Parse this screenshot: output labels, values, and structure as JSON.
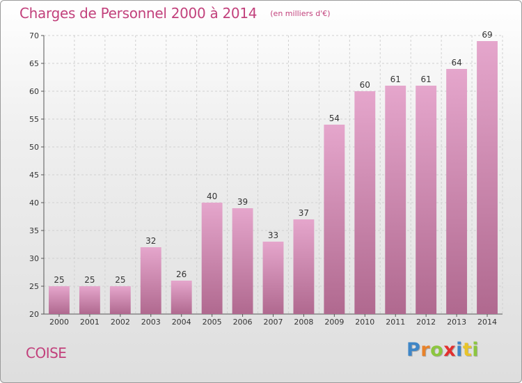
{
  "header": {
    "title": "Charges de Personnel 2000 à 2014",
    "subtitle": "(en milliers d'€)"
  },
  "footer": {
    "commune": "COISE",
    "logo_letters": [
      "P",
      "r",
      "o",
      "x",
      "i",
      "t",
      "i"
    ],
    "logo_colors": [
      "#3f86c7",
      "#e8822a",
      "#8cc63f",
      "#e3302f",
      "#3f86c7",
      "#e8c42a",
      "#8cc63f"
    ]
  },
  "chart_data": {
    "type": "bar",
    "title": "Charges de Personnel 2000 à 2014",
    "subtitle": "(en milliers d'€)",
    "categories": [
      "2000",
      "2001",
      "2002",
      "2003",
      "2004",
      "2005",
      "2006",
      "2007",
      "2008",
      "2009",
      "2010",
      "2011",
      "2012",
      "2013",
      "2014"
    ],
    "values": [
      25,
      25,
      25,
      32,
      26,
      40,
      39,
      33,
      37,
      54,
      60,
      61,
      61,
      64,
      69
    ],
    "ylim": [
      20,
      70
    ],
    "yticks": [
      20,
      25,
      30,
      35,
      40,
      45,
      50,
      55,
      60,
      65,
      70
    ],
    "grid": true,
    "bar_color_top": "#e5a6cc",
    "bar_color_bottom": "#b0698f"
  }
}
